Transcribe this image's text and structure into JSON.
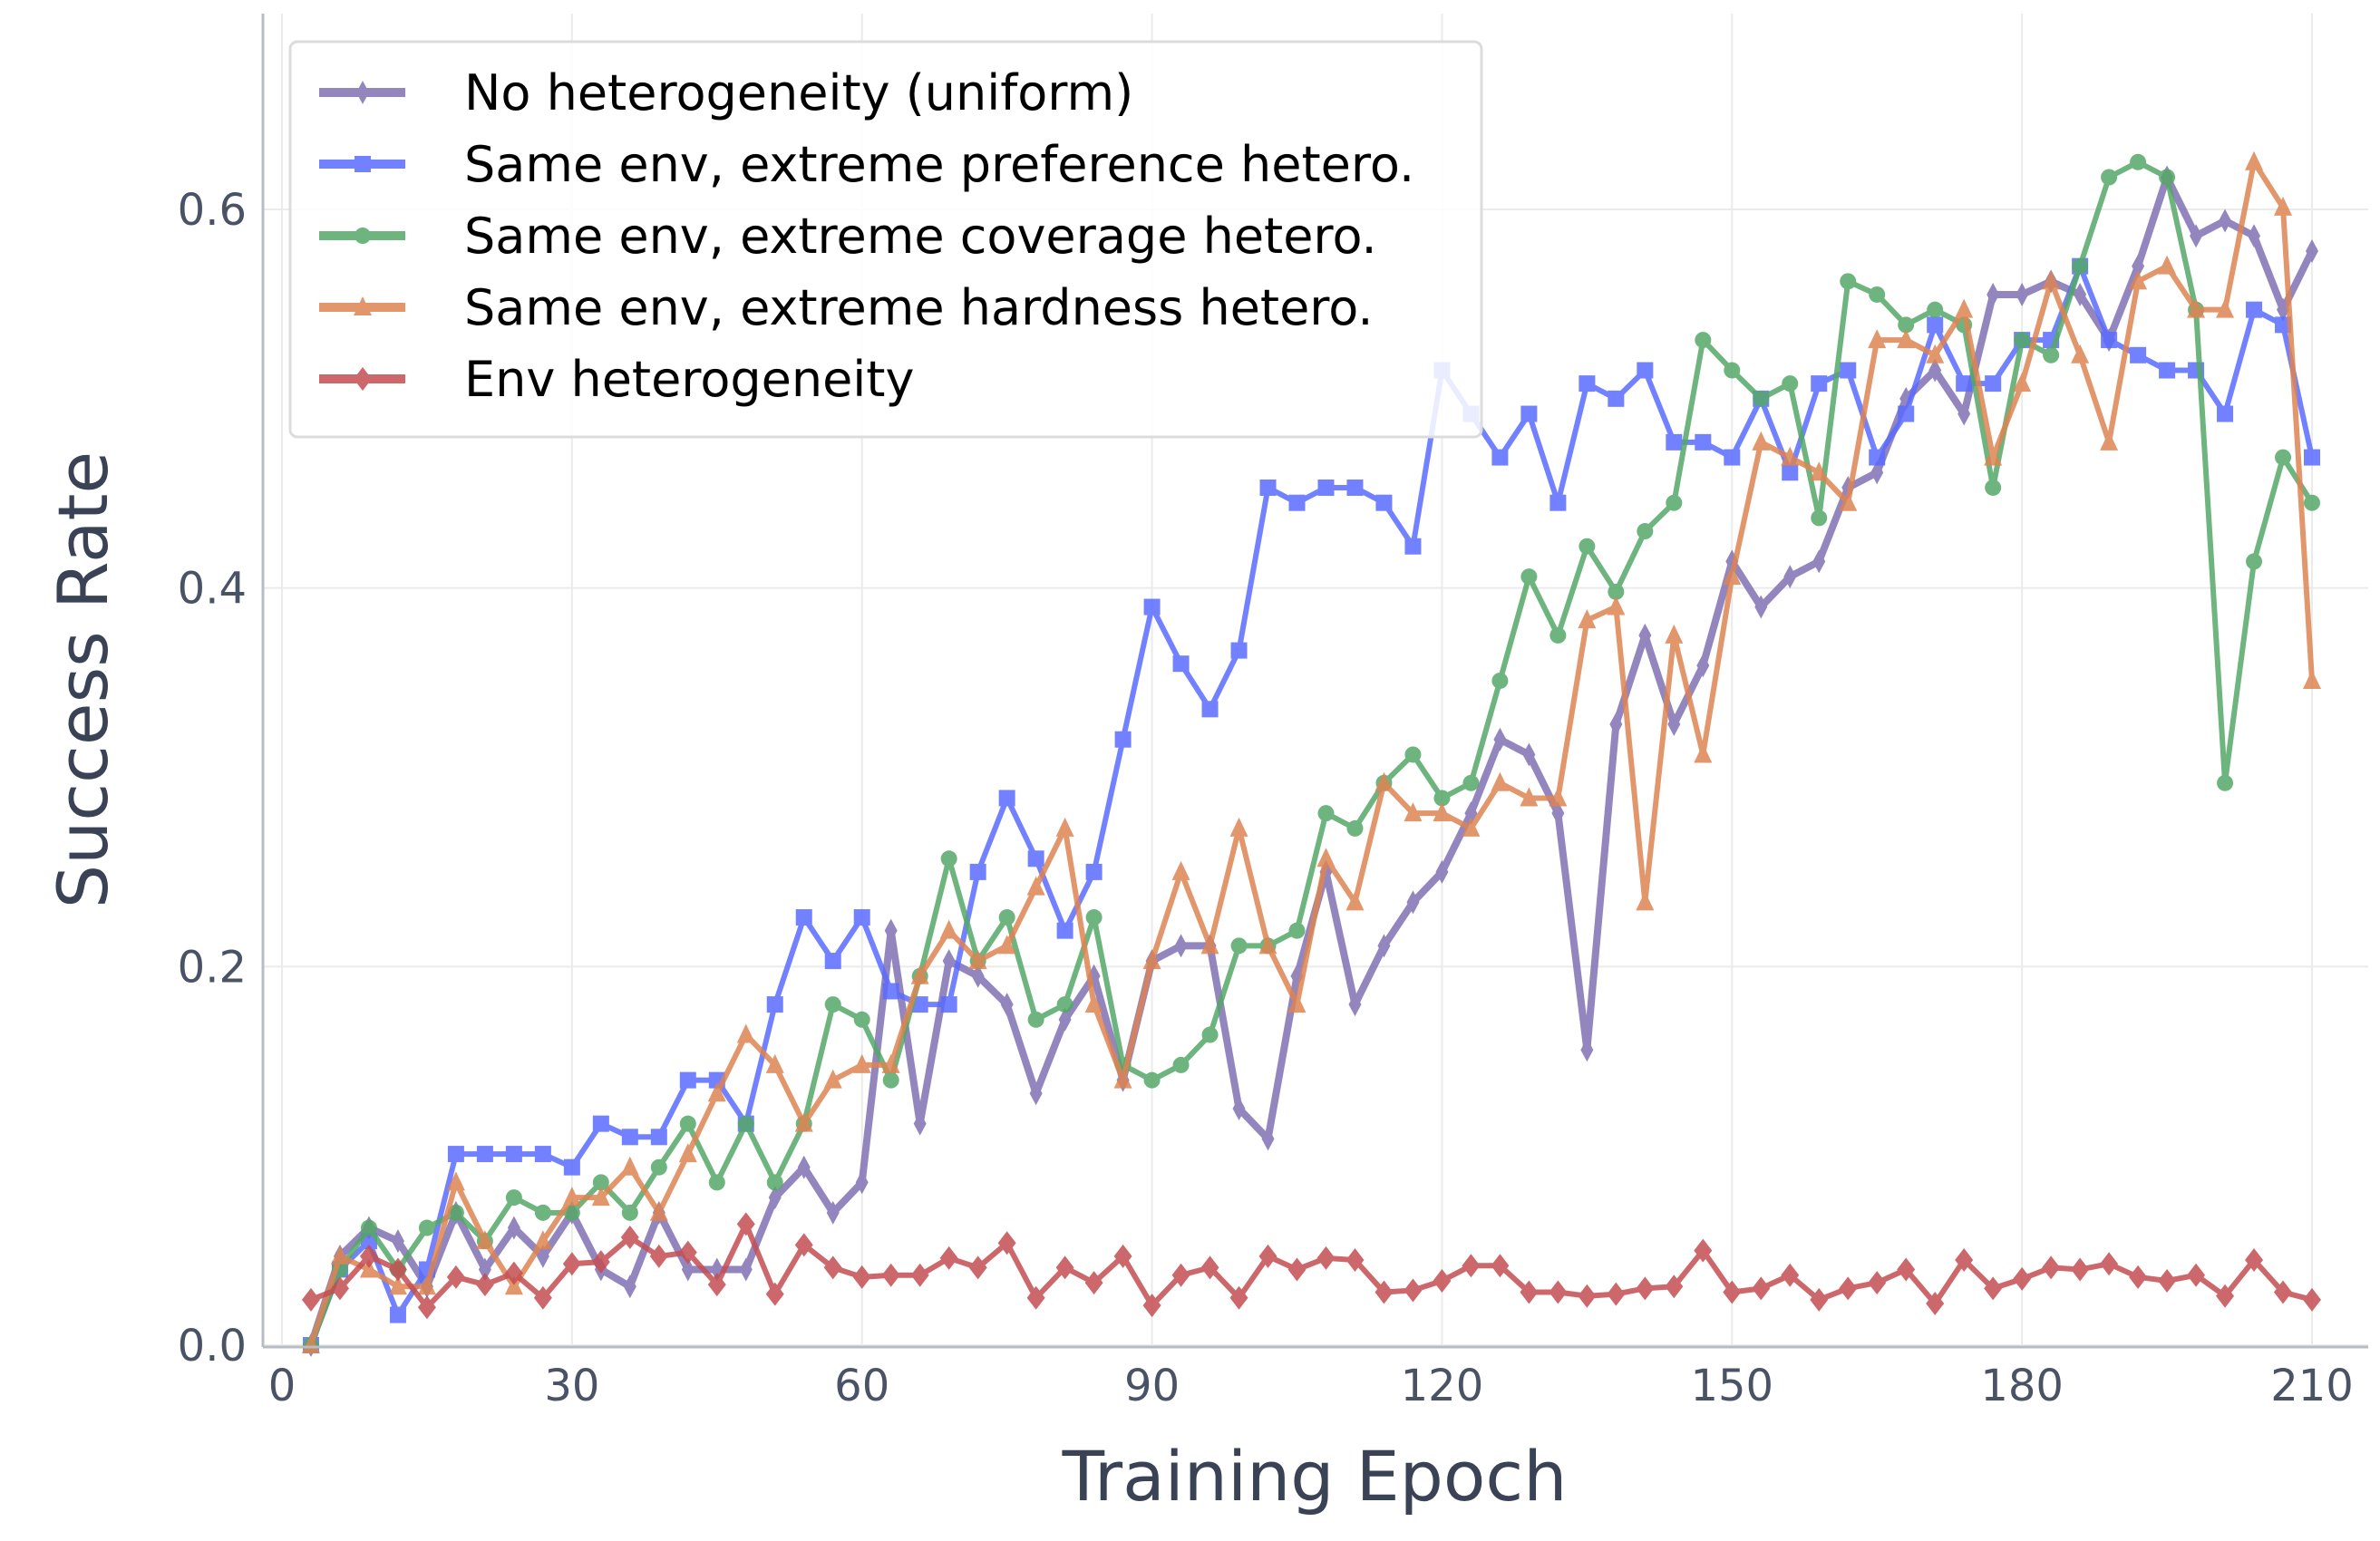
{
  "chart_data": {
    "type": "line",
    "title": "",
    "xlabel": "Training Epoch",
    "ylabel": "Success Rate",
    "xlim": [
      -2,
      216
    ],
    "ylim": [
      0,
      0.7
    ],
    "xticks": [
      0,
      30,
      60,
      90,
      120,
      150,
      180,
      210
    ],
    "yticks": [
      0.0,
      0.2,
      0.4,
      0.6
    ],
    "ytick_labels": [
      "0.0",
      "0.2",
      "0.4",
      "0.6"
    ],
    "grid": true,
    "legend_position": "top-left",
    "x_start": 3,
    "x_step": 3,
    "series": [
      {
        "name": "No heterogeneity (uniform)",
        "color": "#8172B3",
        "marker": "thin_diamond",
        "values": [
          0.0,
          0.047,
          0.062,
          0.055,
          0.031,
          0.07,
          0.04,
          0.062,
          0.047,
          0.07,
          0.04,
          0.031,
          0.07,
          0.04,
          0.04,
          0.04,
          0.078,
          0.094,
          0.07,
          0.086,
          0.219,
          0.117,
          0.203,
          0.195,
          0.18,
          0.133,
          0.172,
          0.195,
          0.14,
          0.203,
          0.211,
          0.211,
          0.125,
          0.109,
          0.195,
          0.25,
          0.18,
          0.211,
          0.234,
          0.25,
          0.281,
          0.32,
          0.312,
          0.281,
          0.156,
          0.328,
          0.375,
          0.328,
          0.359,
          0.414,
          0.39,
          0.406,
          0.414,
          0.453,
          0.461,
          0.5,
          0.515,
          0.492,
          0.555,
          0.555,
          0.562,
          0.555,
          0.531,
          0.57,
          0.617,
          0.586,
          0.594,
          0.586,
          0.547,
          0.578
        ]
      },
      {
        "name": "Same env, extreme preference hetero.",
        "color": "#5A6CFF",
        "marker": "square",
        "values": [
          0.0,
          0.04,
          0.055,
          0.016,
          0.04,
          0.101,
          0.101,
          0.101,
          0.101,
          0.094,
          0.117,
          0.11,
          0.11,
          0.14,
          0.14,
          0.117,
          0.18,
          0.226,
          0.203,
          0.226,
          0.187,
          0.18,
          0.18,
          0.25,
          0.289,
          0.257,
          0.219,
          0.25,
          0.32,
          0.39,
          0.36,
          0.336,
          0.367,
          0.453,
          0.445,
          0.453,
          0.453,
          0.445,
          0.422,
          0.515,
          0.492,
          0.469,
          0.492,
          0.445,
          0.508,
          0.5,
          0.515,
          0.477,
          0.477,
          0.469,
          0.5,
          0.461,
          0.508,
          0.515,
          0.469,
          0.492,
          0.539,
          0.508,
          0.508,
          0.531,
          0.531,
          0.57,
          0.531,
          0.523,
          0.515,
          0.515,
          0.492,
          0.547,
          0.539,
          0.469
        ]
      },
      {
        "name": "Same env, extreme coverage hetero.",
        "color": "#55A868",
        "marker": "circle",
        "values": [
          0.0,
          0.04,
          0.062,
          0.04,
          0.062,
          0.07,
          0.055,
          0.078,
          0.07,
          0.07,
          0.086,
          0.07,
          0.094,
          0.117,
          0.086,
          0.117,
          0.086,
          0.117,
          0.18,
          0.172,
          0.14,
          0.195,
          0.257,
          0.203,
          0.226,
          0.172,
          0.18,
          0.226,
          0.148,
          0.14,
          0.148,
          0.164,
          0.211,
          0.211,
          0.219,
          0.281,
          0.273,
          0.297,
          0.312,
          0.289,
          0.297,
          0.351,
          0.406,
          0.375,
          0.422,
          0.398,
          0.43,
          0.445,
          0.531,
          0.515,
          0.5,
          0.508,
          0.437,
          0.562,
          0.555,
          0.539,
          0.547,
          0.539,
          0.453,
          0.531,
          0.523,
          0.57,
          0.617,
          0.625,
          0.617,
          0.547,
          0.297,
          0.414,
          0.469,
          0.445
        ]
      },
      {
        "name": "Same env, extreme hardness hetero.",
        "color": "#DD8452",
        "marker": "triangle",
        "values": [
          0.0,
          0.047,
          0.04,
          0.031,
          0.031,
          0.086,
          0.055,
          0.031,
          0.055,
          0.078,
          0.078,
          0.094,
          0.07,
          0.101,
          0.133,
          0.164,
          0.148,
          0.117,
          0.14,
          0.148,
          0.148,
          0.195,
          0.219,
          0.203,
          0.211,
          0.242,
          0.273,
          0.18,
          0.14,
          0.203,
          0.25,
          0.211,
          0.273,
          0.211,
          0.18,
          0.257,
          0.234,
          0.297,
          0.281,
          0.281,
          0.273,
          0.297,
          0.289,
          0.289,
          0.383,
          0.39,
          0.234,
          0.375,
          0.312,
          0.406,
          0.477,
          0.469,
          0.461,
          0.445,
          0.531,
          0.531,
          0.523,
          0.547,
          0.469,
          0.508,
          0.562,
          0.523,
          0.477,
          0.562,
          0.57,
          0.547,
          0.547,
          0.625,
          0.601,
          0.351
        ]
      },
      {
        "name": "Env heterogeneity",
        "color": "#C44E52",
        "marker": "diamond",
        "values": [
          0.024,
          0.03,
          0.047,
          0.04,
          0.02,
          0.036,
          0.032,
          0.038,
          0.025,
          0.043,
          0.044,
          0.057,
          0.047,
          0.049,
          0.032,
          0.064,
          0.027,
          0.053,
          0.041,
          0.036,
          0.037,
          0.037,
          0.046,
          0.041,
          0.054,
          0.025,
          0.041,
          0.033,
          0.047,
          0.021,
          0.037,
          0.041,
          0.025,
          0.047,
          0.04,
          0.046,
          0.045,
          0.028,
          0.029,
          0.034,
          0.042,
          0.042,
          0.028,
          0.028,
          0.026,
          0.027,
          0.03,
          0.031,
          0.05,
          0.028,
          0.03,
          0.037,
          0.024,
          0.03,
          0.033,
          0.04,
          0.022,
          0.045,
          0.03,
          0.035,
          0.041,
          0.04,
          0.043,
          0.036,
          0.034,
          0.037,
          0.026,
          0.045,
          0.028,
          0.024
        ]
      }
    ]
  }
}
